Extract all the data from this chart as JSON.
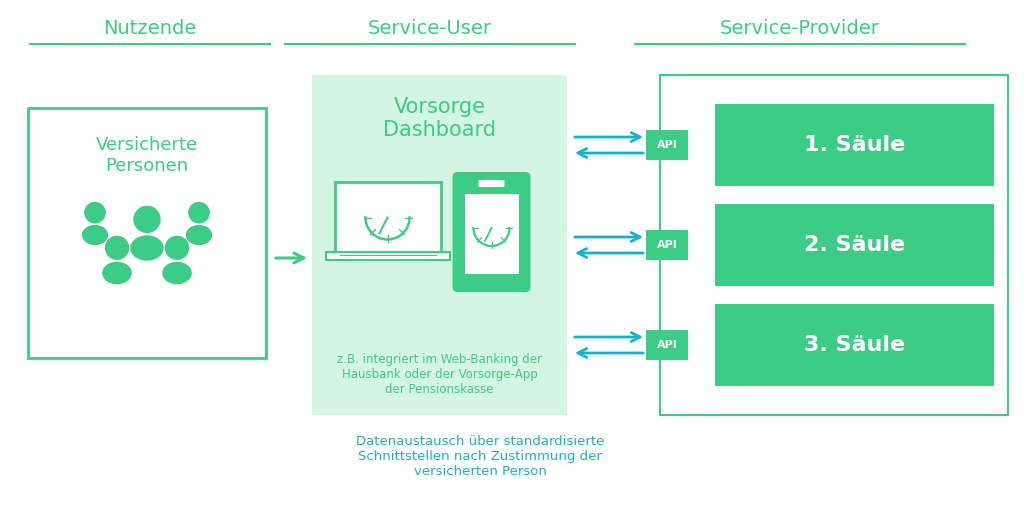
{
  "bg_color": "#ffffff",
  "green_mid": "#3dcc85",
  "green_light": "#d4f5e2",
  "green_text": "#3dcc85",
  "blue_arrow": "#1ab0c8",
  "blue_text": "#1ab0c8",
  "header_nutzende": "Nutzende",
  "header_service_user": "Service-User",
  "header_service_provider": "Service-Provider",
  "box_versicherte_label": "Versicherte\nPersonen",
  "box_dashboard_label": "Vorsorge\nDashboard",
  "box_dashboard_sub": "z.B. integriert im Web-Banking der\nHausbank oder der Vorsorge-App\nder Pensionskasse",
  "saeule_labels": [
    "1. Säule",
    "2. Säule",
    "3. Säule"
  ],
  "api_label": "API",
  "bottom_text": "Datenaustausch über standardisierte\nSchnittstellen nach Zustimmung der\nversicherten Person"
}
